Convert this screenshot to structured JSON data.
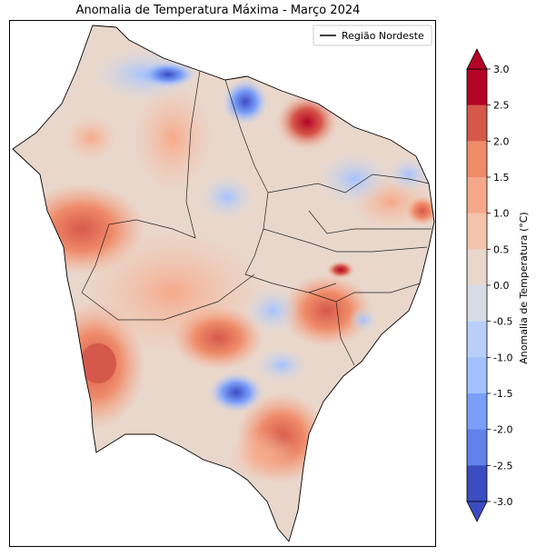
{
  "title": "Anomalia de Temperatura Máxima - Março 2024",
  "legend": {
    "label": "Região Nordeste"
  },
  "colorbar": {
    "label": "Anomalia de Temperatura (°C)",
    "ticks": [
      "3.0",
      "2.5",
      "2.0",
      "1.5",
      "1.0",
      "0.5",
      "0.0",
      "-0.5",
      "-1.0",
      "-1.5",
      "-2.0",
      "-2.5",
      "-3.0"
    ],
    "colors": [
      "#b40426",
      "#d6584a",
      "#ef8b69",
      "#f6a98a",
      "#f4c3ab",
      "#e9d7cc",
      "#d6dce5",
      "#b8d0f9",
      "#a3c1fe",
      "#7b9ff9",
      "#6282ea",
      "#3b4cc0"
    ],
    "extend_colors": {
      "max": "#b40426",
      "min": "#3b4cc0"
    }
  }
}
